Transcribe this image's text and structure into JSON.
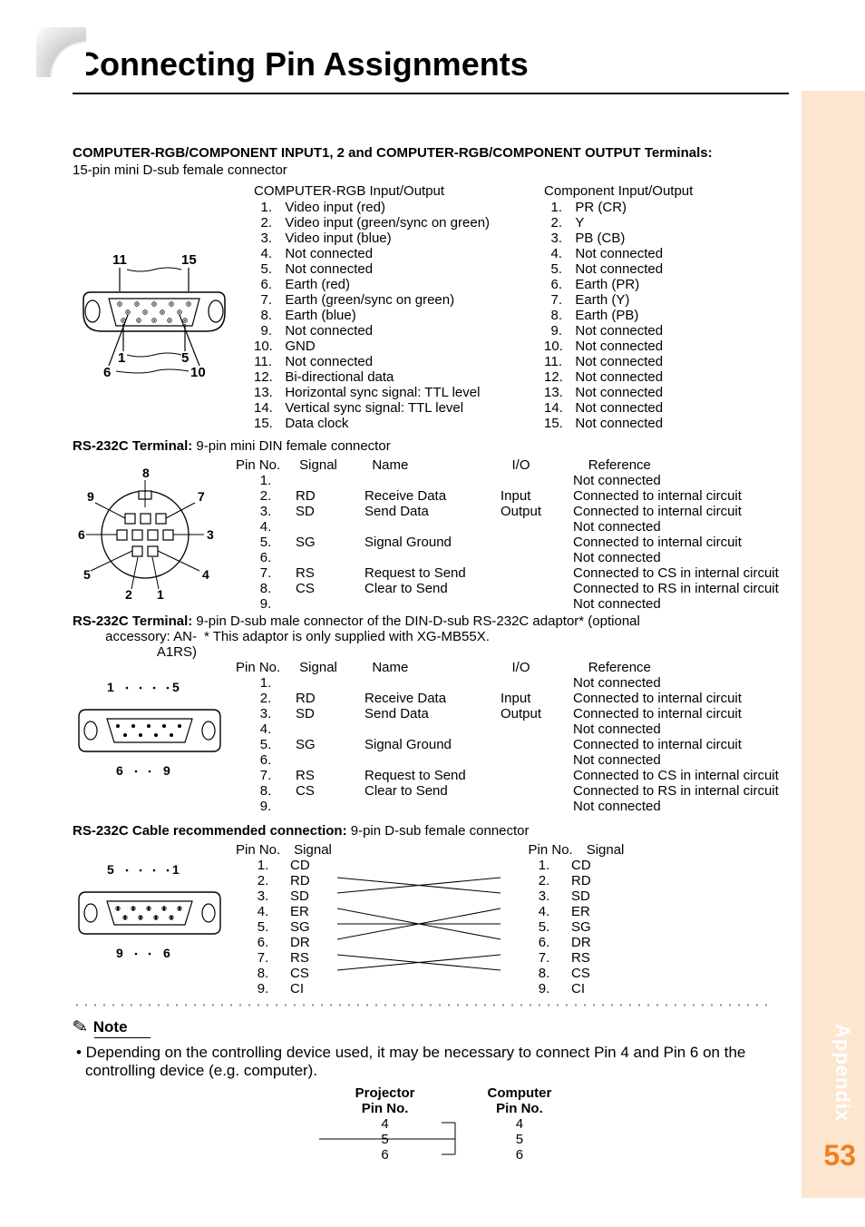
{
  "page": {
    "title": "Connecting Pin Assignments",
    "side_label": "Appendix",
    "page_number": "53"
  },
  "section1": {
    "title": "COMPUTER-RGB/COMPONENT INPUT1, 2 and COMPUTER-RGB/COMPONENT OUTPUT Terminals:",
    "subtitle": "15-pin mini D-sub female connector",
    "diagram_labels": {
      "a": "11",
      "b": "15",
      "c": "1",
      "d": "5",
      "e": "6",
      "f": "10"
    },
    "left_col_title": "COMPUTER-RGB Input/Output",
    "left_pins": [
      "Video input (red)",
      "Video input (green/sync on green)",
      "Video input (blue)",
      "Not connected",
      "Not connected",
      "Earth (red)",
      "Earth (green/sync on green)",
      "Earth (blue)",
      "Not connected",
      "GND",
      "Not connected",
      "Bi-directional data",
      "Horizontal sync signal: TTL level",
      "Vertical sync signal: TTL level",
      "Data clock"
    ],
    "right_col_title": "Component Input/Output",
    "right_pins": [
      "PR (CR)",
      "Y",
      "PB (CB)",
      "Not connected",
      "Not connected",
      "Earth (PR)",
      "Earth (Y)",
      "Earth (PB)",
      "Not connected",
      "Not connected",
      "Not connected",
      "Not connected",
      "Not connected",
      "Not connected",
      "Not connected"
    ]
  },
  "rs232_din": {
    "title_bold": "RS-232C Terminal:",
    "title_rest": " 9-pin mini DIN female connector",
    "diagram_labels": {
      "p1": "1",
      "p2": "2",
      "p3": "3",
      "p4": "4",
      "p5": "5",
      "p6": "6",
      "p7": "7",
      "p8": "8",
      "p9": "9"
    },
    "headers": {
      "pin": "Pin No.",
      "sig": "Signal",
      "name": "Name",
      "io": "I/O",
      "ref": "Reference"
    },
    "rows": [
      {
        "n": "1.",
        "sig": "",
        "name": "",
        "io": "",
        "ref": "Not connected"
      },
      {
        "n": "2.",
        "sig": "RD",
        "name": "Receive Data",
        "io": "Input",
        "ref": "Connected to internal circuit"
      },
      {
        "n": "3.",
        "sig": "SD",
        "name": "Send Data",
        "io": "Output",
        "ref": "Connected to internal circuit"
      },
      {
        "n": "4.",
        "sig": "",
        "name": "",
        "io": "",
        "ref": "Not connected"
      },
      {
        "n": "5.",
        "sig": "SG",
        "name": "Signal Ground",
        "io": "",
        "ref": "Connected to internal circuit"
      },
      {
        "n": "6.",
        "sig": "",
        "name": "",
        "io": "",
        "ref": "Not connected"
      },
      {
        "n": "7.",
        "sig": "RS",
        "name": "Request to Send",
        "io": "",
        "ref": "Connected to CS in internal circuit"
      },
      {
        "n": "8.",
        "sig": "CS",
        "name": "Clear to Send",
        "io": "",
        "ref": "Connected to RS in internal circuit"
      },
      {
        "n": "9.",
        "sig": "",
        "name": "",
        "io": "",
        "ref": "Not connected"
      }
    ]
  },
  "rs232_dsub": {
    "title_bold": "RS-232C Terminal:",
    "title_rest": " 9-pin D-sub male connector of the DIN-D-sub RS-232C adaptor* (optional",
    "title_line2a": "accessory: AN-A1RS)",
    "title_line2b": "*  This adaptor is only supplied with XG-MB55X.",
    "diagram_labels": {
      "a": "1",
      "b": "5",
      "c": "6",
      "d": "9"
    },
    "headers": {
      "pin": "Pin No.",
      "sig": "Signal",
      "name": "Name",
      "io": "I/O",
      "ref": "Reference"
    },
    "rows": [
      {
        "n": "1.",
        "sig": "",
        "name": "",
        "io": "",
        "ref": "Not connected"
      },
      {
        "n": "2.",
        "sig": "RD",
        "name": "Receive Data",
        "io": "Input",
        "ref": "Connected to internal circuit"
      },
      {
        "n": "3.",
        "sig": "SD",
        "name": "Send Data",
        "io": "Output",
        "ref": "Connected to internal circuit"
      },
      {
        "n": "4.",
        "sig": "",
        "name": "",
        "io": "",
        "ref": "Not connected"
      },
      {
        "n": "5.",
        "sig": "SG",
        "name": "Signal Ground",
        "io": "",
        "ref": "Connected to internal circuit"
      },
      {
        "n": "6.",
        "sig": "",
        "name": "",
        "io": "",
        "ref": "Not connected"
      },
      {
        "n": "7.",
        "sig": "RS",
        "name": "Request to Send",
        "io": "",
        "ref": "Connected to CS in internal circuit"
      },
      {
        "n": "8.",
        "sig": "CS",
        "name": "Clear to Send",
        "io": "",
        "ref": "Connected to RS in internal circuit"
      },
      {
        "n": "9.",
        "sig": "",
        "name": "",
        "io": "",
        "ref": "Not connected"
      }
    ]
  },
  "cable": {
    "title_bold": "RS-232C Cable recommended connection:",
    "title_rest": " 9-pin D-sub female connector",
    "diagram_labels": {
      "a": "5",
      "b": "1",
      "c": "9",
      "d": "6"
    },
    "headers": {
      "pin": "Pin No.",
      "sig": "Signal"
    },
    "left": [
      {
        "n": "1.",
        "s": "CD"
      },
      {
        "n": "2.",
        "s": "RD"
      },
      {
        "n": "3.",
        "s": "SD"
      },
      {
        "n": "4.",
        "s": "ER"
      },
      {
        "n": "5.",
        "s": "SG"
      },
      {
        "n": "6.",
        "s": "DR"
      },
      {
        "n": "7.",
        "s": "RS"
      },
      {
        "n": "8.",
        "s": "CS"
      },
      {
        "n": "9.",
        "s": "CI"
      }
    ],
    "right": [
      {
        "n": "1.",
        "s": "CD"
      },
      {
        "n": "2.",
        "s": "RD"
      },
      {
        "n": "3.",
        "s": "SD"
      },
      {
        "n": "4.",
        "s": "ER"
      },
      {
        "n": "5.",
        "s": "SG"
      },
      {
        "n": "6.",
        "s": "DR"
      },
      {
        "n": "7.",
        "s": "RS"
      },
      {
        "n": "8.",
        "s": "CS"
      },
      {
        "n": "9.",
        "s": "CI"
      }
    ]
  },
  "note": {
    "heading": "Note",
    "body": "• Depending on the controlling device used, it may be necessary to connect Pin 4 and Pin 6 on the controlling device (e.g. computer).",
    "proj_head1": "Projector",
    "proj_head2": "Pin No.",
    "comp_head1": "Computer",
    "comp_head2": "Pin No.",
    "pins": [
      "4",
      "5",
      "6"
    ]
  }
}
